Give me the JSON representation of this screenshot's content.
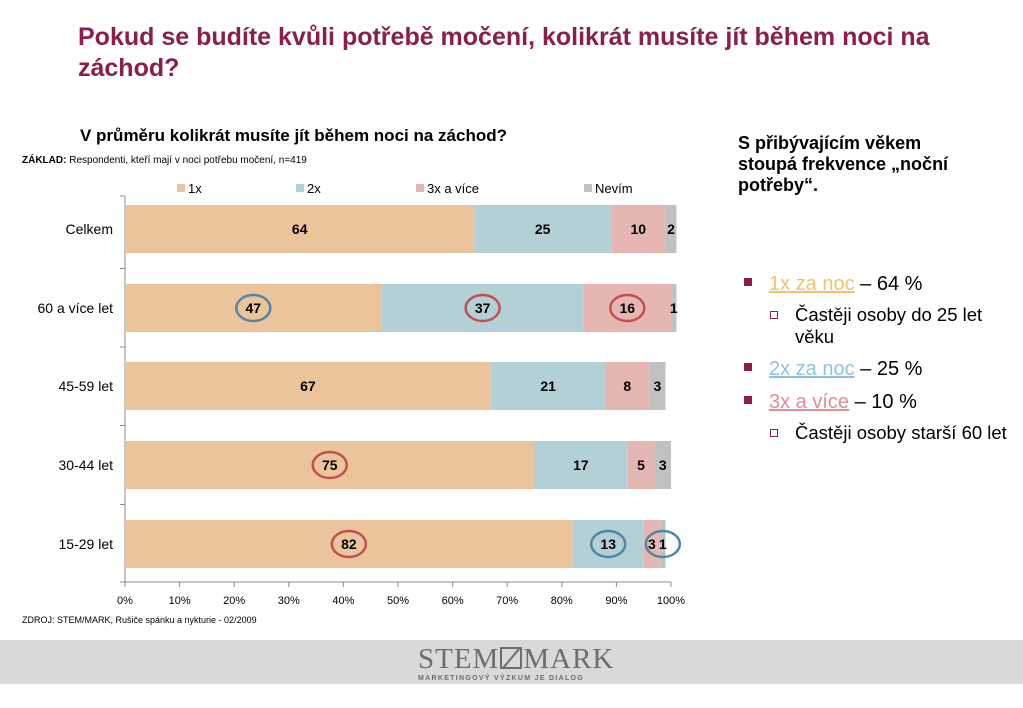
{
  "slide": {
    "title": "Pokud se budíte kvůli potřebě močení, kolikrát musíte jít během noci na záchod?",
    "chart_title": "V průměru kolikrát musíte jít během noci na záchod?",
    "basis_label": "ZÁKLAD:",
    "basis_text": "Respondenti, kteří mají v noci potřebu močení, n=419",
    "source": "ZDROJ: STEM/MARK, Rušiče spánku a nykturie -  02/2009"
  },
  "side": {
    "heading": "S přibývajícím věkem stoupá frekvence „noční potřeby“.",
    "items": [
      {
        "keyword": "1x za noc",
        "rest": " – 64 %",
        "color": "#f2c16e"
      },
      {
        "sub": "Častěji osoby do 25 let věku"
      },
      {
        "keyword": "2x za noc",
        "rest": " – 25 %",
        "color": "#8fc3d9"
      },
      {
        "keyword": "3x a více",
        "rest": " – 10 %",
        "color": "#e48c94"
      },
      {
        "sub": "Častěji osoby starší 60 let"
      }
    ]
  },
  "footer": {
    "logo_left": "STEM",
    "logo_right": "MARK",
    "tagline": "MARKETINGOVÝ VÝZKUM JE DIALOG"
  },
  "chart_data": {
    "type": "bar",
    "orientation": "horizontal",
    "stacked": true,
    "categories": [
      "Celkem",
      "60 a více let",
      "45-59 let",
      "30-44 let",
      "15-29 let"
    ],
    "series": [
      {
        "name": "1x",
        "color": "#ecc49b",
        "values": [
          64,
          47,
          67,
          75,
          82
        ]
      },
      {
        "name": "2x",
        "color": "#b2d0d6",
        "values": [
          25,
          37,
          21,
          17,
          13
        ]
      },
      {
        "name": "3x a více",
        "color": "#e6b6b2",
        "values": [
          10,
          16,
          8,
          5,
          3
        ]
      },
      {
        "name": "Nevím",
        "color": "#c1c1c1",
        "values": [
          2,
          1,
          3,
          3,
          1
        ]
      }
    ],
    "xlim": [
      0,
      100
    ],
    "xticks": [
      "0%",
      "10%",
      "20%",
      "30%",
      "40%",
      "50%",
      "60%",
      "70%",
      "80%",
      "90%",
      "100%"
    ],
    "legend": "top",
    "highlight_circles": [
      {
        "category": "60 a více let",
        "series": "1x",
        "color": "#4f86a6"
      },
      {
        "category": "60 a více let",
        "series": "2x",
        "color": "#c0504d"
      },
      {
        "category": "60 a více let",
        "series": "3x a více",
        "color": "#c0504d"
      },
      {
        "category": "30-44 let",
        "series": "1x",
        "color": "#c0504d"
      },
      {
        "category": "15-29 let",
        "series": "1x",
        "color": "#c0504d"
      },
      {
        "category": "15-29 let",
        "series": "2x",
        "color": "#4f86a6"
      },
      {
        "category": "15-29 let",
        "series": "Nevím",
        "color": "#4f86a6"
      }
    ]
  }
}
